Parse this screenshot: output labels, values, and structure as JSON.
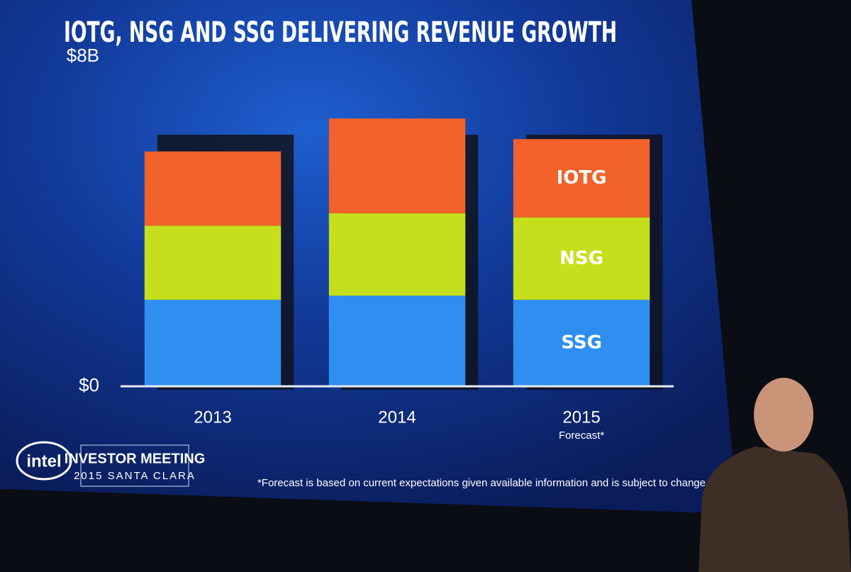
{
  "chart_data": {
    "type": "stacked_bar",
    "title": "IOTG, NSG AND SSG DELIVERING REVENUE GROWTH",
    "categories": [
      "2013",
      "2014",
      "2015"
    ],
    "forecast_label": "Forecast*",
    "series": [
      {
        "name": "SSG",
        "color": "#2e8ff0",
        "values": [
          2.1,
          2.2,
          2.1
        ]
      },
      {
        "name": "NSG",
        "color": "#c6df1c",
        "values": [
          1.8,
          2.0,
          2.0
        ]
      },
      {
        "name": "IOTG",
        "color": "#f2622a",
        "values": [
          1.8,
          2.3,
          1.9
        ]
      }
    ],
    "ylim": [
      0,
      8
    ],
    "yticks": [
      {
        "value": 0,
        "label": "$0"
      },
      {
        "value": 8,
        "label": "$8B"
      }
    ],
    "footnote": "*Forecast is based on current expectations given available information and is subject to change w",
    "branding": {
      "logo": "intel",
      "event": "INVESTOR MEETING",
      "place": "2015 SANTA CLARA"
    }
  }
}
